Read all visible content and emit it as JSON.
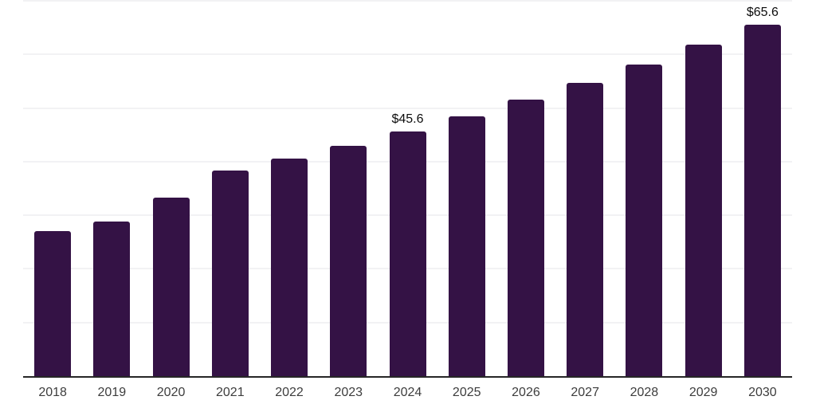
{
  "chart_data": {
    "type": "bar",
    "title": "",
    "xlabel": "",
    "ylabel": "",
    "categories": [
      "2018",
      "2019",
      "2020",
      "2021",
      "2022",
      "2023",
      "2024",
      "2025",
      "2026",
      "2027",
      "2028",
      "2029",
      "2030"
    ],
    "values": [
      27.0,
      28.9,
      33.3,
      38.3,
      40.5,
      43.0,
      45.6,
      48.5,
      51.5,
      54.7,
      58.1,
      61.8,
      65.6
    ],
    "data_labels": [
      "",
      "",
      "",
      "",
      "",
      "",
      "$45.6",
      "",
      "",
      "",
      "",
      "",
      "$65.6"
    ],
    "ylim": [
      0,
      70
    ],
    "gridline_step": 10,
    "grid": "horizontal",
    "legend": "none",
    "y_tick_labels_visible": false,
    "colors": {
      "bar": "#341245",
      "gridline": "#f2f2f4",
      "axis_line": "#262626",
      "tick_label": "#3d3d3d",
      "data_label": "#0d0d0d",
      "background": "#ffffff"
    }
  }
}
